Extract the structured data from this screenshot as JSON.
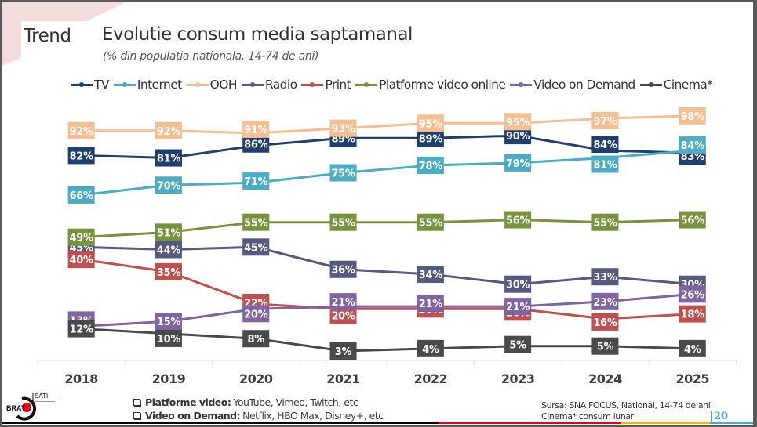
{
  "slide": {
    "section_label": "Trend",
    "title": "Evolutie consum media saptamanal",
    "subtitle": "(% din populatia nationala, 14-74 de ani)",
    "notes": [
      {
        "bold": "Platforme video:",
        "text": "YouTube, Vimeo, Twitch,  etc"
      },
      {
        "bold": "Video on Demand:",
        "text": "Netflix, HBO Max, Disney+,  etc"
      }
    ],
    "source_lines": [
      "Sursa: SNA FOCUS, National, 14-74 de ani",
      "Cinema* consum lunar"
    ],
    "page_number": "20",
    "logo": {
      "brand": "BRAT",
      "sub": "SATI"
    },
    "colors": {
      "accent_pink": "#f2dcdc",
      "strip": [
        "#000000",
        "#e2001a",
        "#f7b500",
        "#4bacc6"
      ]
    }
  },
  "chart_data": {
    "type": "line",
    "title": "Evolutie consum media saptamanal",
    "subtitle": "(% din populatia nationala, 14-74 de ani)",
    "xlabel": "",
    "ylabel": "",
    "ylim": [
      0,
      100
    ],
    "grid": false,
    "legend_position": "top",
    "categories": [
      "2018",
      "2019",
      "2020",
      "2021",
      "2022",
      "2023",
      "2024",
      "2025"
    ],
    "series": [
      {
        "name": "TV",
        "color": "#1f3f6e",
        "values": [
          82,
          81,
          86,
          89,
          89,
          90,
          84,
          83
        ]
      },
      {
        "name": "Internet",
        "color": "#4bacc6",
        "values": [
          66,
          70,
          71,
          75,
          78,
          79,
          81,
          84
        ]
      },
      {
        "name": "OOH",
        "color": "#f7be92",
        "values": [
          92,
          92,
          91,
          93,
          95,
          95,
          97,
          98
        ]
      },
      {
        "name": "Radio",
        "color": "#565a80",
        "values": [
          45,
          44,
          45,
          36,
          34,
          30,
          33,
          30
        ]
      },
      {
        "name": "Print",
        "color": "#c0504d",
        "values": [
          40,
          35,
          22,
          20,
          20,
          20,
          16,
          18
        ]
      },
      {
        "name": "Platforme video online",
        "color": "#77933c",
        "values": [
          49,
          51,
          55,
          55,
          55,
          56,
          55,
          56
        ]
      },
      {
        "name": "Video on Demand",
        "color": "#8064a2",
        "values": [
          13,
          15,
          20,
          21,
          21,
          21,
          23,
          26
        ]
      },
      {
        "name": "Cinema*",
        "color": "#4a4a4a",
        "values": [
          12,
          10,
          8,
          3,
          4,
          5,
          5,
          4
        ]
      }
    ],
    "value_suffix": "%"
  }
}
